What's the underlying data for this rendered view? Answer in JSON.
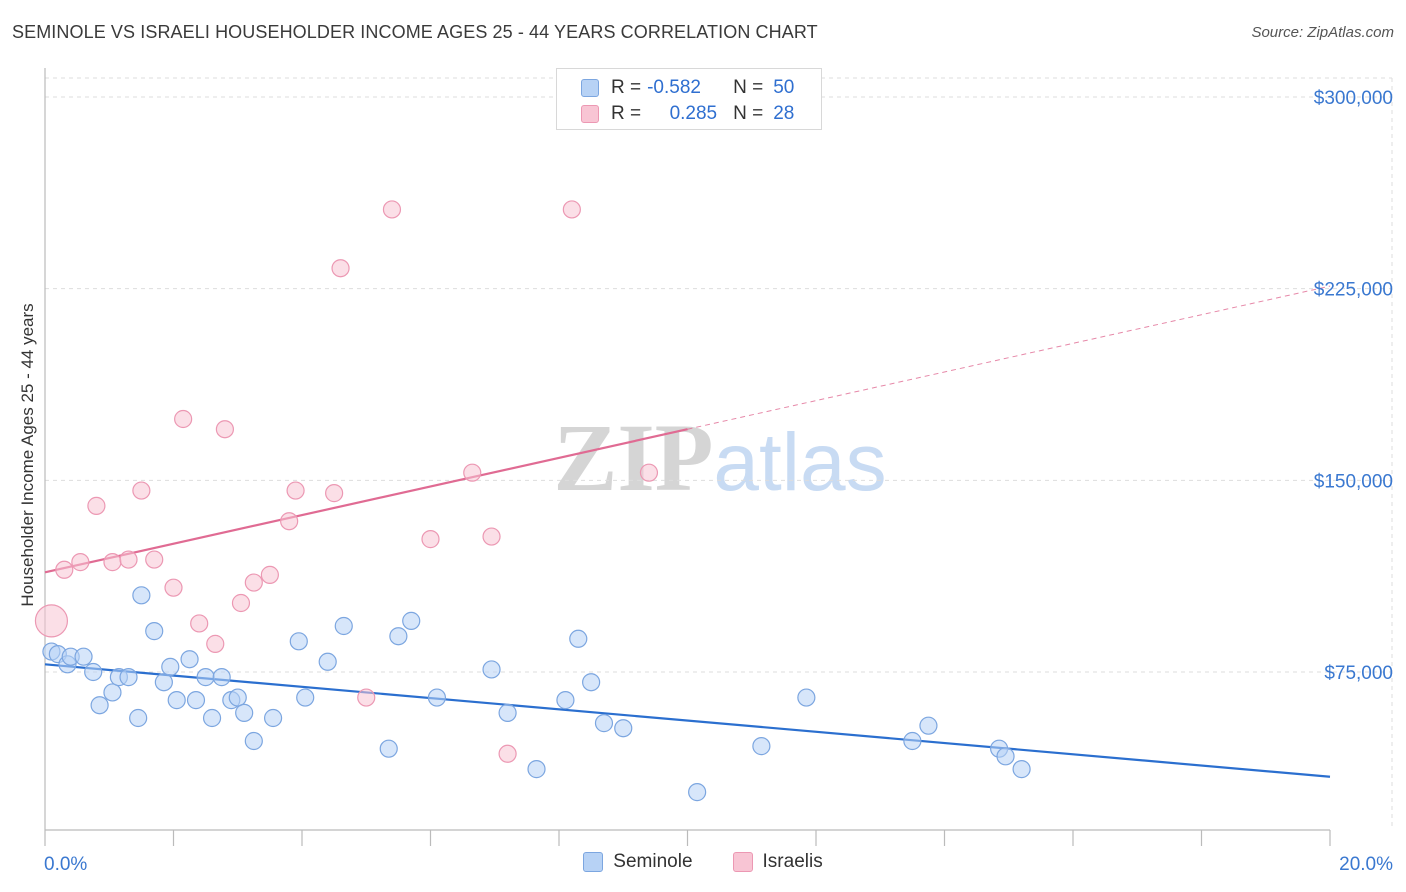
{
  "title": "SEMINOLE VS ISRAELI HOUSEHOLDER INCOME AGES 25 - 44 YEARS CORRELATION CHART",
  "source": "Source: ZipAtlas.com",
  "watermark": "ZIPatlas",
  "colors": {
    "seminole_fill": "#b7d2f5",
    "seminole_stroke": "#7ca6e0",
    "seminole_line": "#2b6fcf",
    "israelis_fill": "#f8c5d4",
    "israelis_stroke": "#ec98b3",
    "israelis_line": "#e06b93",
    "axis_label": "#3a78d0",
    "grid": "#dddddd"
  },
  "legend": {
    "rows": [
      {
        "label_r": "R =",
        "r": "-0.582",
        "label_n": "N =",
        "n": "50"
      },
      {
        "label_r": "R =",
        "r": "0.285",
        "label_n": "N =",
        "n": "28"
      }
    ]
  },
  "chart_data": {
    "type": "scatter",
    "xlabel": "",
    "ylabel": "Householder Income Ages 25 - 44 years",
    "xlim": [
      0,
      20
    ],
    "ylim": [
      0,
      310000
    ],
    "x_ticks": [
      0,
      2,
      4,
      6,
      8,
      10,
      12,
      14,
      16,
      18,
      20
    ],
    "x_tick_labels": {
      "min": "0.0%",
      "max": "20.0%"
    },
    "y_ticks": [
      75000,
      150000,
      225000,
      300000
    ],
    "y_tick_labels": [
      "$75,000",
      "$150,000",
      "$225,000",
      "$300,000"
    ],
    "grid": true,
    "legend_position": "bottom",
    "series": [
      {
        "name": "Seminole",
        "points": [
          [
            0.1,
            83000
          ],
          [
            0.2,
            82000
          ],
          [
            0.35,
            78000
          ],
          [
            0.4,
            81000
          ],
          [
            0.6,
            81000
          ],
          [
            0.75,
            75000
          ],
          [
            0.85,
            62000
          ],
          [
            1.05,
            67000
          ],
          [
            1.15,
            73000
          ],
          [
            1.3,
            73000
          ],
          [
            1.45,
            57000
          ],
          [
            1.5,
            105000
          ],
          [
            1.7,
            91000
          ],
          [
            1.85,
            71000
          ],
          [
            1.95,
            77000
          ],
          [
            2.05,
            64000
          ],
          [
            2.25,
            80000
          ],
          [
            2.35,
            64000
          ],
          [
            2.5,
            73000
          ],
          [
            2.6,
            57000
          ],
          [
            2.75,
            73000
          ],
          [
            2.9,
            64000
          ],
          [
            3.0,
            65000
          ],
          [
            3.1,
            59000
          ],
          [
            3.25,
            48000
          ],
          [
            3.55,
            57000
          ],
          [
            3.95,
            87000
          ],
          [
            4.05,
            65000
          ],
          [
            4.4,
            79000
          ],
          [
            4.65,
            93000
          ],
          [
            5.35,
            45000
          ],
          [
            5.5,
            89000
          ],
          [
            5.7,
            95000
          ],
          [
            6.1,
            65000
          ],
          [
            6.95,
            76000
          ],
          [
            7.2,
            59000
          ],
          [
            7.65,
            37000
          ],
          [
            8.1,
            64000
          ],
          [
            8.3,
            88000
          ],
          [
            8.5,
            71000
          ],
          [
            8.7,
            55000
          ],
          [
            9.0,
            53000
          ],
          [
            10.15,
            28000
          ],
          [
            11.15,
            46000
          ],
          [
            11.85,
            65000
          ],
          [
            13.5,
            48000
          ],
          [
            13.75,
            54000
          ],
          [
            14.85,
            45000
          ],
          [
            14.95,
            42000
          ],
          [
            15.2,
            37000
          ]
        ],
        "trend": {
          "x": [
            0,
            20
          ],
          "y": [
            78000,
            34000
          ]
        }
      },
      {
        "name": "Israelis",
        "points": [
          [
            0.1,
            95000
          ],
          [
            0.3,
            115000
          ],
          [
            0.55,
            118000
          ],
          [
            0.8,
            140000
          ],
          [
            1.05,
            118000
          ],
          [
            1.3,
            119000
          ],
          [
            1.5,
            146000
          ],
          [
            1.7,
            119000
          ],
          [
            2.0,
            108000
          ],
          [
            2.15,
            174000
          ],
          [
            2.4,
            94000
          ],
          [
            2.65,
            86000
          ],
          [
            2.8,
            170000
          ],
          [
            3.05,
            102000
          ],
          [
            3.25,
            110000
          ],
          [
            3.5,
            113000
          ],
          [
            3.8,
            134000
          ],
          [
            3.9,
            146000
          ],
          [
            4.5,
            145000
          ],
          [
            4.6,
            233000
          ],
          [
            5.0,
            65000
          ],
          [
            5.4,
            256000
          ],
          [
            6.0,
            127000
          ],
          [
            6.65,
            153000
          ],
          [
            6.95,
            128000
          ],
          [
            7.2,
            43000
          ],
          [
            8.2,
            256000
          ],
          [
            9.4,
            153000
          ]
        ],
        "trend": {
          "x": [
            0,
            10
          ],
          "y": [
            114000,
            170000
          ]
        },
        "trend_dashed": {
          "x": [
            10,
            20
          ],
          "y": [
            170000,
            226000
          ]
        }
      }
    ]
  }
}
